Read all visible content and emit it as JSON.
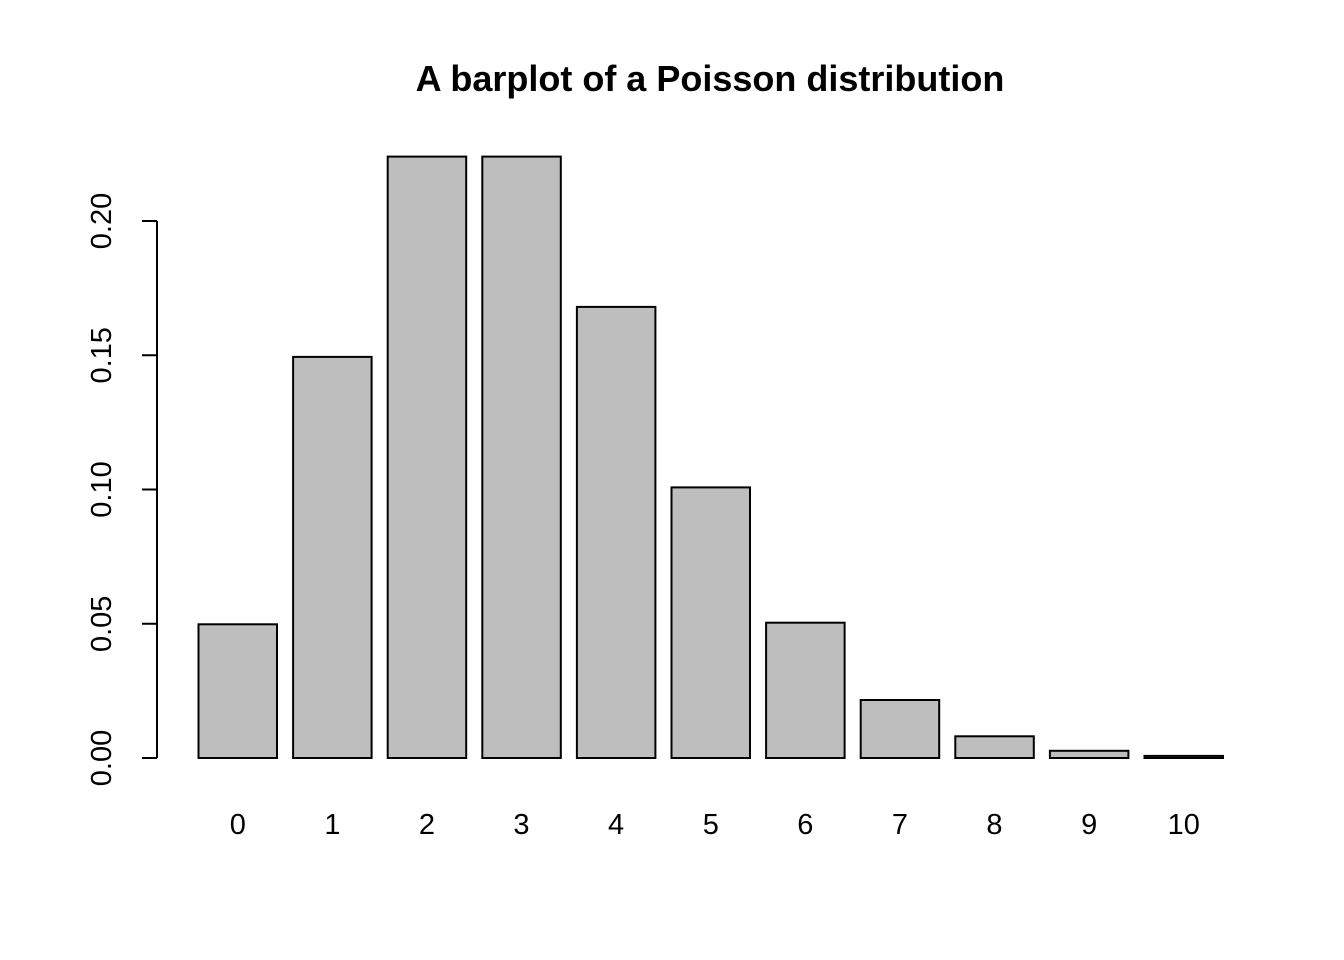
{
  "chart_data": {
    "type": "bar",
    "title": "A barplot of a Poisson distribution",
    "xlabel": "",
    "ylabel": "",
    "categories": [
      "0",
      "1",
      "2",
      "3",
      "4",
      "5",
      "6",
      "7",
      "8",
      "9",
      "10"
    ],
    "values": [
      0.0498,
      0.1494,
      0.224,
      0.224,
      0.168,
      0.1008,
      0.0504,
      0.0216,
      0.0081,
      0.0027,
      0.0008
    ],
    "yticks": [
      0.0,
      0.05,
      0.1,
      0.15,
      0.2
    ],
    "ytick_labels": [
      "0.00",
      "0.05",
      "0.10",
      "0.15",
      "0.20"
    ],
    "ylim": [
      0,
      0.224
    ],
    "bar_fill": "#bebebe",
    "bar_stroke": "#000000",
    "grid": false,
    "legend": "none"
  }
}
